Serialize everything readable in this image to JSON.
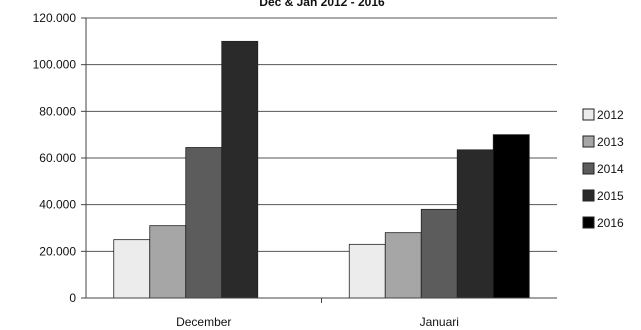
{
  "chart_data": {
    "type": "bar",
    "title": "Dec & Jan 2012 - 2016",
    "xlabel": "",
    "ylabel": "",
    "categories": [
      "December",
      "Januari"
    ],
    "series": [
      {
        "name": "2012",
        "values": [
          25000,
          23000
        ],
        "color": "#ececec"
      },
      {
        "name": "2013",
        "values": [
          31000,
          28000
        ],
        "color": "#a6a6a6"
      },
      {
        "name": "2014",
        "values": [
          64500,
          38000
        ],
        "color": "#5c5c5c"
      },
      {
        "name": "2015",
        "values": [
          110000,
          63500
        ],
        "color": "#2a2a2a"
      },
      {
        "name": "2016",
        "values": [
          null,
          70000
        ],
        "color": "#000000"
      }
    ],
    "ylim": [
      0,
      120000
    ],
    "yticks": [
      "0",
      "20.000",
      "40.000",
      "60.000",
      "80.000",
      "100.000",
      "120.000"
    ],
    "grid": true,
    "legend_position": "right"
  }
}
